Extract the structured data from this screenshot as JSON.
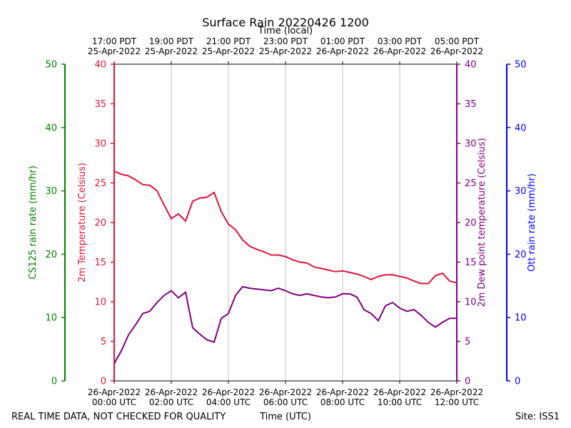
{
  "chart_data": {
    "type": "line",
    "title": "Surface Rain 20220426 1200",
    "xlabel": "Time (UTC)",
    "x2label": "Time (local)",
    "footnote": "REAL TIME DATA, NOT CHECKED FOR QUALITY",
    "site": "Site: ISS1",
    "grid": true,
    "xlim": [
      0,
      12
    ],
    "xticks": [
      {
        "value": 0,
        "label": "26-Apr-2022\n00:00 UTC"
      },
      {
        "value": 2,
        "label": "26-Apr-2022\n02:00 UTC"
      },
      {
        "value": 4,
        "label": "26-Apr-2022\n04:00 UTC"
      },
      {
        "value": 6,
        "label": "26-Apr-2022\n06:00 UTC"
      },
      {
        "value": 8,
        "label": "26-Apr-2022\n08:00 UTC"
      },
      {
        "value": 10,
        "label": "26-Apr-2022\n10:00 UTC"
      },
      {
        "value": 12,
        "label": "26-Apr-2022\n12:00 UTC"
      }
    ],
    "x2ticks": [
      {
        "value": 0,
        "label": "17:00 PDT\n25-Apr-2022"
      },
      {
        "value": 2,
        "label": "19:00 PDT\n25-Apr-2022"
      },
      {
        "value": 4,
        "label": "21:00 PDT\n25-Apr-2022"
      },
      {
        "value": 6,
        "label": "23:00 PDT\n25-Apr-2022"
      },
      {
        "value": 8,
        "label": "01:00 PDT\n26-Apr-2022"
      },
      {
        "value": 10,
        "label": "03:00 PDT\n26-Apr-2022"
      },
      {
        "value": 12,
        "label": "05:00 PDT\n26-Apr-2022"
      }
    ],
    "y_axes": [
      {
        "label": "CS125 rain rate (mm/hr)",
        "color": "#008000",
        "lim": [
          0,
          50
        ],
        "ticks": [
          0,
          10,
          20,
          30,
          40,
          50
        ]
      },
      {
        "label": "2m Temperature (Celsius)",
        "color": "#dc143c",
        "lim": [
          0,
          40
        ],
        "ticks": [
          0,
          5,
          10,
          15,
          20,
          25,
          30,
          35,
          40
        ]
      },
      {
        "label": "2m Dew point temperature (Celsius)",
        "color": "#800080",
        "lim": [
          0,
          40
        ],
        "ticks": [
          0,
          5,
          10,
          15,
          20,
          25,
          30,
          35,
          40
        ]
      },
      {
        "label": "Ott rain rate (mm/hr)",
        "color": "#0000ff",
        "lim": [
          0,
          50
        ],
        "ticks": [
          0,
          10,
          20,
          30,
          40,
          50
        ]
      }
    ],
    "x": [
      0,
      0.25,
      0.5,
      0.75,
      1,
      1.25,
      1.5,
      1.75,
      2,
      2.25,
      2.5,
      2.75,
      3,
      3.25,
      3.5,
      3.75,
      4,
      4.25,
      4.5,
      4.75,
      5,
      5.25,
      5.5,
      5.75,
      6,
      6.25,
      6.5,
      6.75,
      7,
      7.25,
      7.5,
      7.75,
      8,
      8.25,
      8.5,
      8.75,
      9,
      9.25,
      9.5,
      9.75,
      10,
      10.25,
      10.5,
      10.75,
      11,
      11.25,
      11.5,
      11.75,
      12
    ],
    "series": [
      {
        "name": "2m Temperature",
        "color": "#dc143c",
        "axis": 1,
        "values": [
          26.5,
          26.1,
          25.9,
          25.4,
          24.8,
          24.7,
          24.0,
          22.2,
          20.5,
          21.1,
          20.2,
          22.7,
          23.1,
          23.2,
          23.8,
          21.4,
          19.8,
          19.1,
          17.8,
          17.0,
          16.6,
          16.3,
          15.9,
          15.9,
          15.7,
          15.3,
          15.0,
          14.9,
          14.4,
          14.2,
          14.0,
          13.8,
          13.9,
          13.7,
          13.5,
          13.2,
          12.8,
          13.2,
          13.4,
          13.4,
          13.2,
          13.0,
          12.6,
          12.3,
          12.3,
          13.3,
          13.6,
          12.6,
          12.4
        ]
      },
      {
        "name": "2m Dew point",
        "color": "#800080",
        "axis": 2,
        "values": [
          2.2,
          3.8,
          5.8,
          7.1,
          8.5,
          8.8,
          9.9,
          10.8,
          11.4,
          10.5,
          11.2,
          6.7,
          5.9,
          5.2,
          4.9,
          7.9,
          8.5,
          10.8,
          11.9,
          11.7,
          11.6,
          11.5,
          11.4,
          11.7,
          11.4,
          11.0,
          10.8,
          11.0,
          10.8,
          10.6,
          10.5,
          10.6,
          11.0,
          11.0,
          10.6,
          9.0,
          8.5,
          7.6,
          9.5,
          9.9,
          9.2,
          8.8,
          9.0,
          8.3,
          7.4,
          6.8,
          7.4,
          7.9,
          7.9
        ]
      }
    ]
  }
}
